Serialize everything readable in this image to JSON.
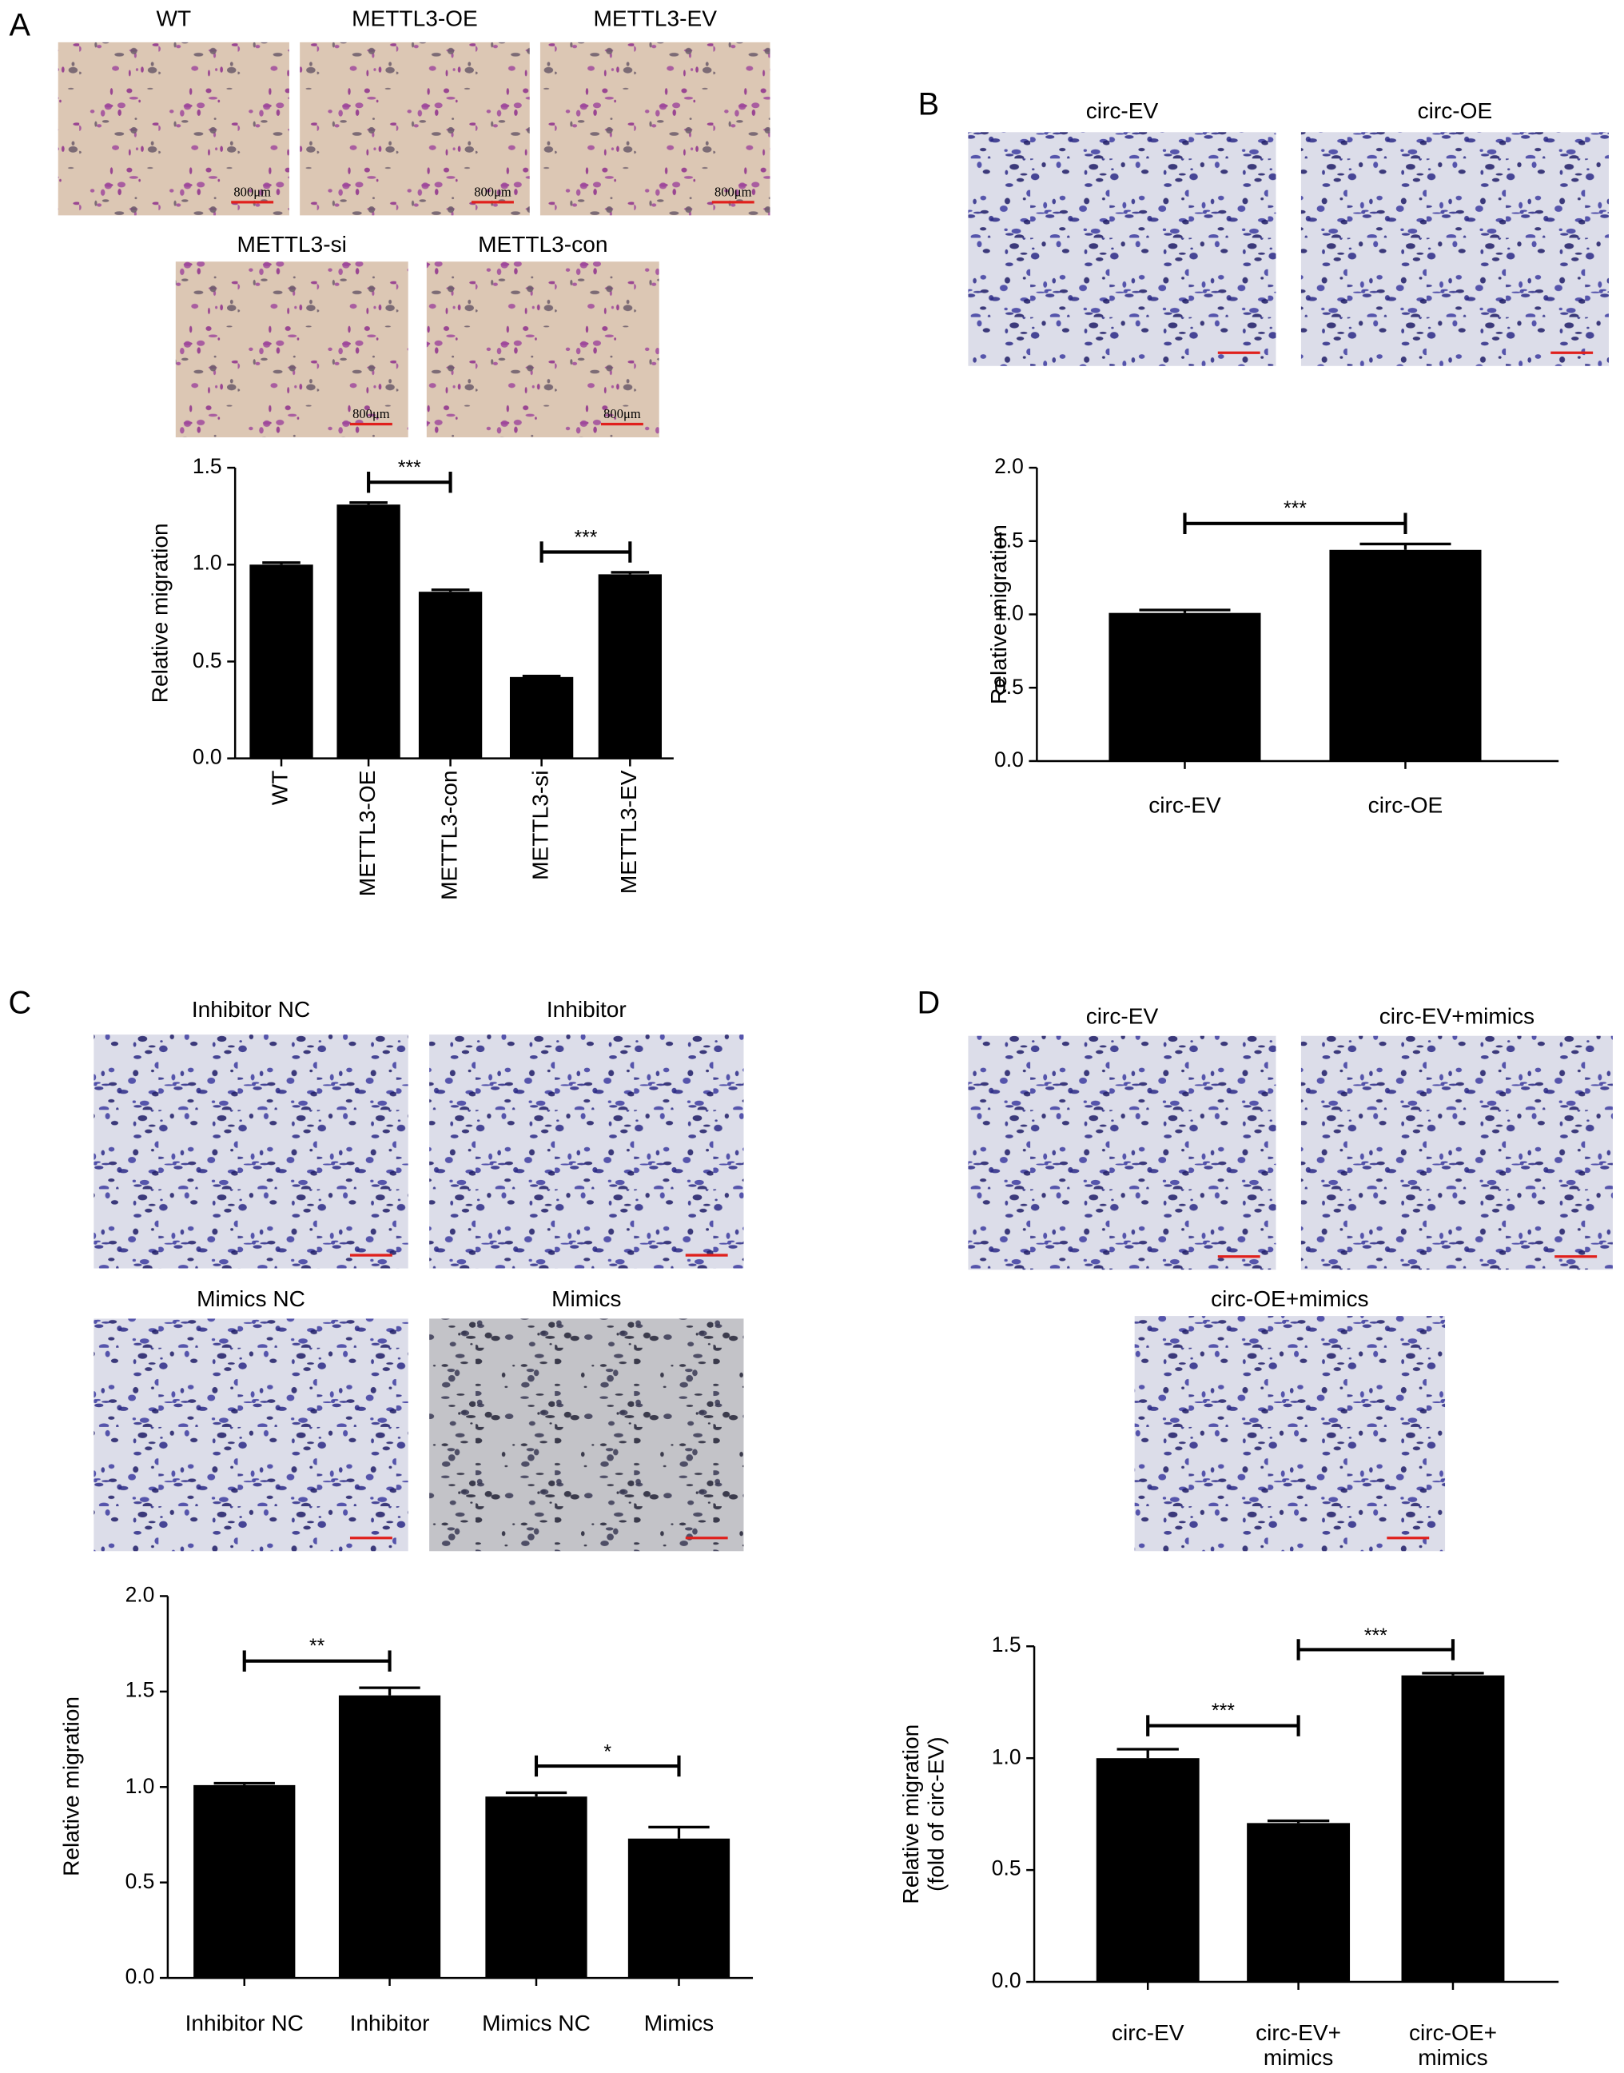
{
  "panels": [
    {
      "letter": "A",
      "images": [
        "WT",
        "METTL3-OE",
        "METTL3-EV",
        "METTL3-si",
        "METTL3-con"
      ],
      "scale_bar": "800μm"
    },
    {
      "letter": "B",
      "images": [
        "circ-EV",
        "circ-OE"
      ]
    },
    {
      "letter": "C",
      "images": [
        "Inhibitor NC",
        "Inhibitor",
        "Mimics NC",
        "Mimics"
      ]
    },
    {
      "letter": "D",
      "images": [
        "circ-EV",
        "circ-EV+mimics",
        "circ-OE+mimics"
      ]
    }
  ],
  "chart_data": [
    {
      "type": "bar",
      "ylabel": "Relative migration",
      "categories": [
        "WT",
        "METTL3-OE",
        "METTL3-con",
        "METTL3-si",
        "METTL3-EV"
      ],
      "values": [
        1.0,
        1.31,
        0.86,
        0.42,
        0.95
      ],
      "errors": [
        0.01,
        0.01,
        0.01,
        0.005,
        0.01
      ],
      "color": "#000000",
      "ylim": [
        0,
        1.5
      ],
      "yticks": [
        {
          "value": 0,
          "label": "0.0"
        },
        0.5,
        {
          "value": 1,
          "label": "1.0"
        },
        1.5
      ],
      "x_label_rotation": -90,
      "annotations": [
        {
          "label": "***",
          "between": [
            "METTL3-OE",
            "METTL3-con"
          ]
        },
        {
          "label": "***",
          "between": [
            "METTL3-si",
            "METTL3-EV"
          ]
        }
      ]
    },
    {
      "type": "bar",
      "ylabel": "Relative migration",
      "categories": [
        "circ-EV",
        "circ-OE"
      ],
      "values": [
        1.01,
        1.44
      ],
      "errors": [
        0.02,
        0.04
      ],
      "color": "#000000",
      "ylim": [
        0,
        2
      ],
      "yticks": [
        {
          "value": 0,
          "label": "0.0"
        },
        0.5,
        {
          "value": 1,
          "label": "1.0"
        },
        1.5,
        {
          "value": 2,
          "label": "2.0"
        }
      ],
      "annotations": [
        {
          "label": "***",
          "between": [
            "circ-EV",
            "circ-OE"
          ]
        }
      ]
    },
    {
      "type": "bar",
      "ylabel": "Relative migration",
      "categories": [
        "Inhibitor NC",
        "Inhibitor",
        "Mimics NC",
        "Mimics"
      ],
      "values": [
        1.01,
        1.48,
        0.95,
        0.73
      ],
      "errors": [
        0.01,
        0.04,
        0.02,
        0.06
      ],
      "color": "#000000",
      "ylim": [
        0,
        2
      ],
      "yticks": [
        {
          "value": 0,
          "label": "0.0"
        },
        0.5,
        {
          "value": 1,
          "label": "1.0"
        },
        1.5,
        {
          "value": 2,
          "label": "2.0"
        }
      ],
      "annotations": [
        {
          "label": "**",
          "between": [
            "Inhibitor NC",
            "Inhibitor"
          ]
        },
        {
          "label": "*",
          "between": [
            "Mimics NC",
            "Mimics"
          ]
        }
      ]
    },
    {
      "type": "bar",
      "ylabel": "Relative migration\n(fold of circ-EV)",
      "categories": [
        "circ-EV",
        "circ-EV+\nmimics",
        "circ-OE+\nmimics"
      ],
      "values": [
        1.0,
        0.71,
        1.37
      ],
      "errors": [
        0.04,
        0.01,
        0.01
      ],
      "color": "#000000",
      "ylim": [
        0,
        1.5
      ],
      "yticks": [
        {
          "value": 0,
          "label": "0.0"
        },
        0.5,
        {
          "value": 1,
          "label": "1.0"
        },
        1.5
      ],
      "annotations": [
        {
          "label": "***",
          "between": [
            "circ-EV",
            "circ-EV+\nmimics"
          ]
        },
        {
          "label": "***",
          "between": [
            "circ-EV+\nmimics",
            "circ-OE+\nmimics"
          ]
        }
      ]
    }
  ]
}
